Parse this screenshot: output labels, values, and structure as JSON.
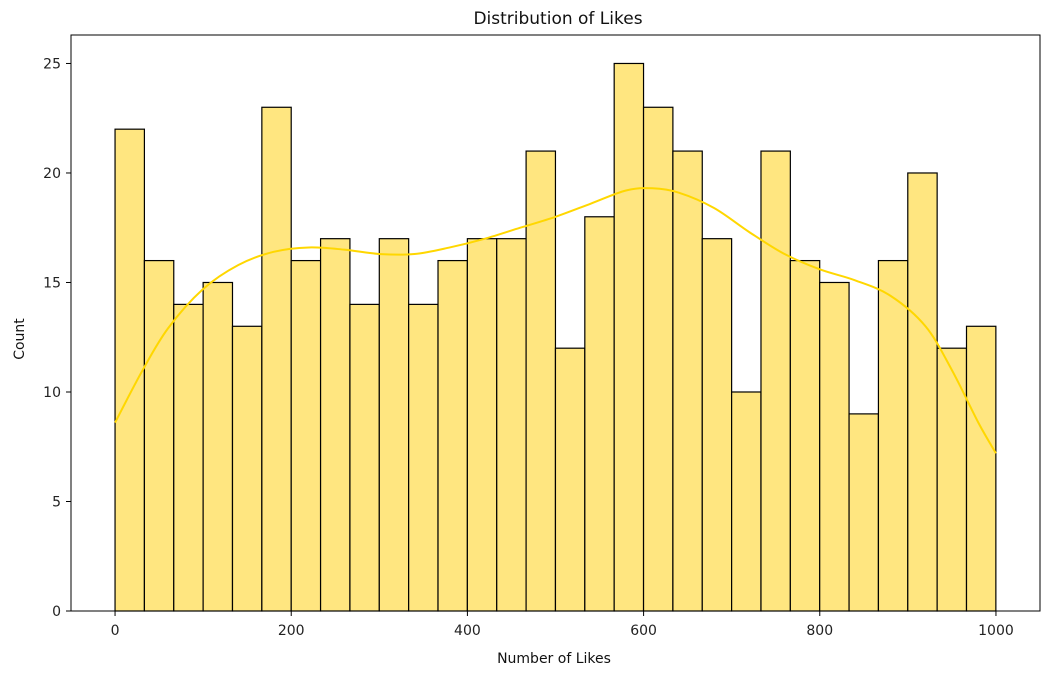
{
  "chart_data": {
    "type": "bar",
    "title": "Distribution of Likes",
    "xlabel": "Number of Likes",
    "ylabel": "Count",
    "xlim": [
      -50,
      1050
    ],
    "ylim": [
      0,
      26.3
    ],
    "x_ticks": [
      0,
      200,
      400,
      600,
      800,
      1000
    ],
    "y_ticks": [
      0,
      5,
      10,
      15,
      20,
      25
    ],
    "bin_start": 0,
    "bin_width": 33.33,
    "counts": [
      22,
      16,
      14,
      15,
      13,
      23,
      16,
      17,
      14,
      17,
      14,
      16,
      17,
      17,
      21,
      12,
      18,
      25,
      23,
      21,
      17,
      10,
      21,
      16,
      15,
      9,
      16,
      20,
      12,
      13
    ],
    "kde": {
      "x": [
        0,
        30,
        60,
        100,
        140,
        180,
        220,
        260,
        300,
        340,
        380,
        420,
        460,
        500,
        540,
        580,
        610,
        640,
        680,
        720,
        760,
        800,
        840,
        880,
        920,
        950,
        980,
        1000
      ],
      "y": [
        8.6,
        10.9,
        12.9,
        14.7,
        15.8,
        16.4,
        16.6,
        16.5,
        16.3,
        16.3,
        16.6,
        17.0,
        17.5,
        18.0,
        18.6,
        19.2,
        19.3,
        19.1,
        18.4,
        17.3,
        16.3,
        15.6,
        15.1,
        14.4,
        13.0,
        11.0,
        8.6,
        7.2
      ]
    },
    "colors": {
      "bar_fill": "#FFE680",
      "bar_edge": "#000000",
      "kde_line": "#FFD700",
      "axis": "#000000"
    }
  }
}
